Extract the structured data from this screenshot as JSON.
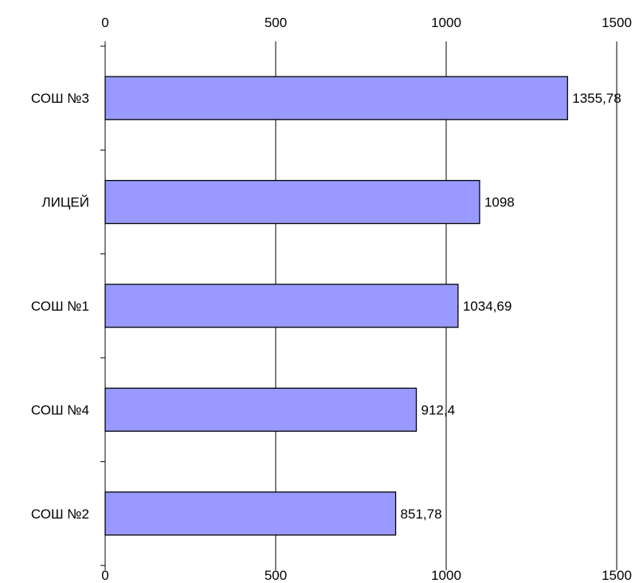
{
  "chart_data": {
    "type": "bar",
    "orientation": "horizontal",
    "categories": [
      "СОШ №3",
      "ЛИЦЕЙ",
      "СОШ №1",
      "СОШ №4",
      "СОШ №2"
    ],
    "values": [
      1355.78,
      1098,
      1034.69,
      912.4,
      851.78
    ],
    "value_labels": [
      "1355,78",
      "1098",
      "1034,69",
      "912,4",
      "851,78"
    ],
    "xlim": [
      0,
      1500
    ],
    "x_ticks": [
      0,
      500,
      1000,
      1500
    ],
    "x_tick_labels": [
      "0",
      "500",
      "1000",
      "1500"
    ],
    "x_axis_position": "top and bottom",
    "grid": "vertical",
    "legend": false,
    "title": "",
    "xlabel": "",
    "ylabel": ""
  },
  "colors": {
    "bar_fill": "#9999ff",
    "bar_stroke": "#000000",
    "grid": "#000000",
    "axis": "#000000"
  }
}
